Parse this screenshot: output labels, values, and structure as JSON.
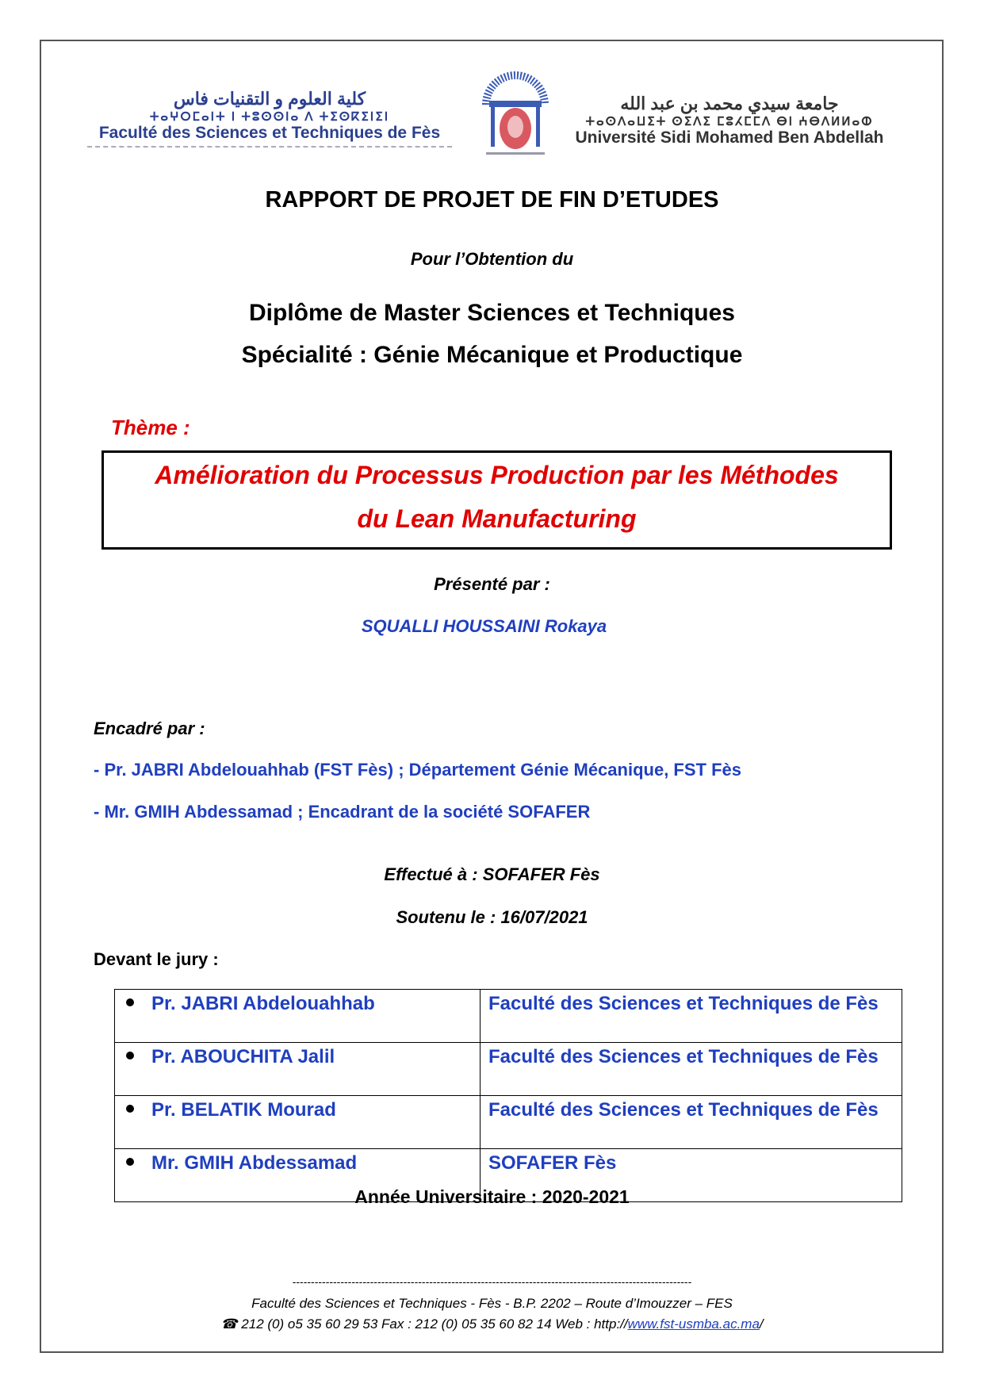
{
  "header": {
    "left_logo": {
      "arabic": "كلية العلوم و التقنيات فاس",
      "tifinagh": "ⵜⴰⵖⵔⵎⴰⵏⵜ ⵏ ⵜⵓⵙⵙⵏⴰ ⴷ ⵜⵉⵙⴽⵉⵏⵉⵏ",
      "french": "Faculté des Sciences et Techniques de Fès"
    },
    "right_logo": {
      "arabic": "جامعة سيدي محمد بن عبد الله",
      "tifinagh": "ⵜⴰⵙⴷⴰⵡⵉⵜ ⵙⵉⴷⵉ ⵎⵓⵃⵎⵎⴷ ⴱⵏ ⵄⴱⴷⵍⵍⴰⵀ",
      "french": "Université Sidi Mohamed Ben Abdellah"
    },
    "seal_colors": {
      "blue": "#3b5bb5",
      "red": "#d0303a"
    }
  },
  "title": "RAPPORT DE PROJET DE FIN D’ETUDES",
  "subtitle": "Pour l’Obtention du",
  "degree": "Diplôme de Master Sciences et Techniques",
  "speciality": "Spécialité : Génie Mécanique et Productique",
  "theme_label": "Thème :",
  "theme_lines": [
    "Amélioration du Processus Production par les Méthodes",
    "du Lean Manufacturing"
  ],
  "presented_label": "Présenté par :",
  "student": "SQUALLI HOUSSAINI Rokaya",
  "supervised_label": "Encadré par :",
  "supervisors": [
    "- Pr. JABRI Abdelouahhab (FST Fès) ; Département Génie Mécanique, FST Fès",
    "- Mr. GMIH Abdessamad ; Encadrant de la société SOFAFER"
  ],
  "done_at": "Effectué à : SOFAFER Fès",
  "defended": "Soutenu le :  16/07/2021",
  "jury_label": "Devant le jury :",
  "jury": [
    {
      "name": "Pr. JABRI Abdelouahhab",
      "affiliation": "Faculté des Sciences et Techniques de Fès"
    },
    {
      "name": "Pr. ABOUCHITA Jalil",
      "affiliation": "Faculté des Sciences et Techniques de Fès"
    },
    {
      "name": "Pr. BELATIK Mourad",
      "affiliation": "Faculté des Sciences et Techniques de Fès"
    },
    {
      "name": "Mr. GMIH Abdessamad",
      "affiliation": "SOFAFER Fès"
    }
  ],
  "year": "Année Universitaire : 2020-2021",
  "footer": {
    "dashes": "------------------------------------------------------------------------------------------------------------",
    "address": "Faculté des Sciences et Techniques - Fès  - B.P. 2202 – Route d’Imouzzer – FES",
    "phone_icon": "telephone-icon",
    "contact": "212 (0) o5 35 60 29 53  Fax : 212 (0) 05 35 60 82 14 Web : http://",
    "url": "www.fst-usmba.ac.ma",
    "url_suffix": "/"
  },
  "colors": {
    "blue": "#1f3fbf",
    "red": "#e00000"
  }
}
